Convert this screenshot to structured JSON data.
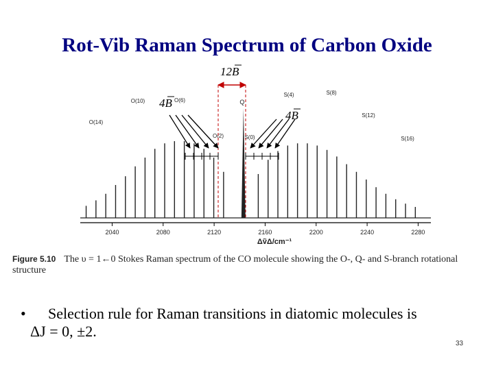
{
  "slide": {
    "title": "Rot-Vib Raman Spectrum of Carbon Oxide",
    "slide_number": "33"
  },
  "figure": {
    "spacing_top": "12B",
    "spacing_left": "4B",
    "spacing_right": "4B",
    "caption_number": "Figure 5.10",
    "caption_text": "The υ = 1←0 Stokes Raman spectrum of the CO molecule showing the O-, Q- and S-branch rotational structure",
    "arrow_color": "#c00000"
  },
  "chart_data": {
    "type": "line",
    "xlabel": "ΔṽΔ/cm⁻¹",
    "x_ticks": [
      "2040",
      "2080",
      "2120",
      "2160",
      "2200",
      "2240",
      "2280"
    ],
    "xlim": [
      2015,
      2290
    ],
    "q_branch": {
      "label": "Q",
      "x": 2143
    },
    "branch_labels": [
      "O(10)",
      "O(14)",
      "O(6)",
      "O(2)",
      "S(0)",
      "S(4)",
      "S(8)",
      "S(12)",
      "S(16)"
    ],
    "series": [
      {
        "name": "O-branch",
        "x": [
          2127.4,
          2119.7,
          2112.0,
          2104.3,
          2096.6,
          2088.9,
          2081.2,
          2073.5,
          2065.8,
          2058.1,
          2050.4,
          2042.7,
          2035.0,
          2027.3,
          2019.6
        ],
        "values": [
          0.42,
          0.55,
          0.63,
          0.68,
          0.7,
          0.7,
          0.68,
          0.63,
          0.55,
          0.47,
          0.38,
          0.3,
          0.22,
          0.16,
          0.11
        ]
      },
      {
        "name": "S-branch",
        "x": [
          2154.6,
          2162.3,
          2170.0,
          2177.7,
          2185.4,
          2193.1,
          2200.8,
          2208.5,
          2216.2,
          2223.9,
          2231.6,
          2239.3,
          2247.0,
          2254.7,
          2262.4,
          2270.1,
          2277.8
        ],
        "values": [
          0.4,
          0.53,
          0.61,
          0.66,
          0.68,
          0.68,
          0.66,
          0.62,
          0.56,
          0.49,
          0.42,
          0.35,
          0.28,
          0.22,
          0.17,
          0.13,
          0.1
        ]
      }
    ],
    "q_value": 1.0
  },
  "bullet": {
    "marker": "•",
    "text": "Selection rule for Raman transitions in diatomic molecules is",
    "rule": "ΔJ = 0, ±2."
  }
}
